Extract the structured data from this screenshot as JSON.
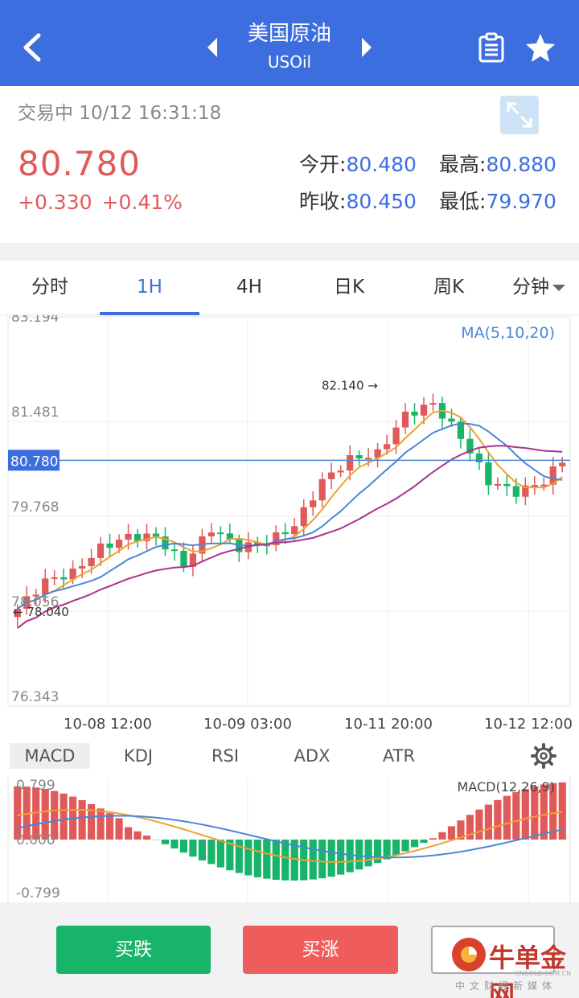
{
  "header": {
    "title": "美国原油",
    "symbol": "USOil",
    "colors": {
      "bar": "#3d6ee0"
    }
  },
  "quote": {
    "status": "交易中 10/12 16:31:18",
    "price": "80.780",
    "change": "+0.330",
    "change_pct": "+0.41%",
    "open_label": "今开:",
    "open": "80.480",
    "high_label": "最高:",
    "high": "80.880",
    "prev_close_label": "昨收:",
    "prev_close": "80.450",
    "low_label": "最低:",
    "low": "79.970"
  },
  "tabs": [
    {
      "label": "分时"
    },
    {
      "label": "1H"
    },
    {
      "label": "4H"
    },
    {
      "label": "日K"
    },
    {
      "label": "周K"
    },
    {
      "label": "分钟"
    }
  ],
  "chart_data": [
    {
      "type": "candlestick",
      "ma_label": "MA(5,10,20)",
      "y_ticks": [
        "83.194",
        "81.481",
        "79.768",
        "78.056",
        "76.343"
      ],
      "ylim": [
        76.343,
        83.194
      ],
      "x_ticks": [
        "10-08 12:00",
        "10-09 03:00",
        "10-11 20:00",
        "10-12 12:00"
      ],
      "current_price": 80.78,
      "current_price_label": "80.780",
      "max_marker": "82.140",
      "min_marker": "78.040",
      "colors": {
        "up": "#e05a5a",
        "down": "#17b46a",
        "ma5": "#f0a030",
        "ma10": "#4a86d8",
        "ma20": "#b0308a"
      }
    },
    {
      "type": "bar",
      "label": "MACD(12,26,9)",
      "y_ticks": [
        "0.799",
        "0.000",
        "-0.799"
      ],
      "ylim": [
        -0.799,
        0.799
      ]
    }
  ],
  "indicators": [
    "MACD",
    "KDJ",
    "RSI",
    "ADX",
    "ATR"
  ],
  "actions": {
    "sell": "买跌",
    "buy": "买涨"
  },
  "watermark": {
    "name": "牛单金网",
    "sub": "中文财经新媒体",
    "url": "CNGOLD.COM.CN"
  }
}
